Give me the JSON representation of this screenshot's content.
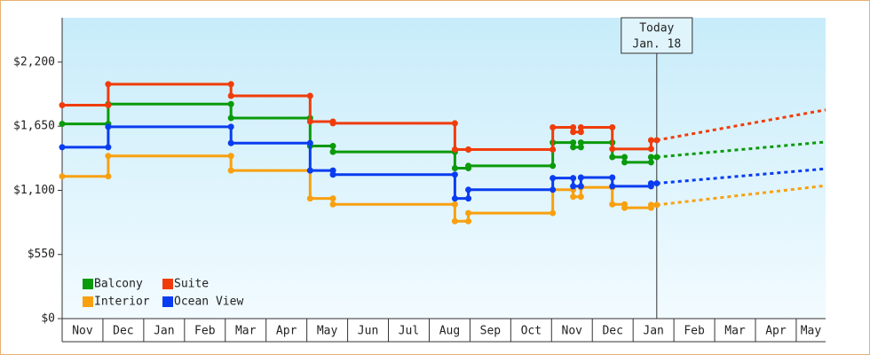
{
  "chart_data": {
    "type": "step-line",
    "xlim": [
      0,
      18.72
    ],
    "xticks": [
      {
        "value": 0.5,
        "label": "Nov"
      },
      {
        "value": 1.5,
        "label": "Dec"
      },
      {
        "value": 2.5,
        "label": "Jan"
      },
      {
        "value": 3.5,
        "label": "Feb"
      },
      {
        "value": 4.5,
        "label": "Mar"
      },
      {
        "value": 5.5,
        "label": "Apr"
      },
      {
        "value": 6.5,
        "label": "May"
      },
      {
        "value": 7.5,
        "label": "Jun"
      },
      {
        "value": 8.5,
        "label": "Jul"
      },
      {
        "value": 9.5,
        "label": "Aug"
      },
      {
        "value": 10.5,
        "label": "Sep"
      },
      {
        "value": 11.5,
        "label": "Oct"
      },
      {
        "value": 12.5,
        "label": "Nov"
      },
      {
        "value": 13.5,
        "label": "Dec"
      },
      {
        "value": 14.5,
        "label": "Jan"
      },
      {
        "value": 15.5,
        "label": "Feb"
      },
      {
        "value": 16.5,
        "label": "Mar"
      },
      {
        "value": 17.5,
        "label": "Apr"
      },
      {
        "value": 18.36,
        "label": "May"
      }
    ],
    "ylim": [
      0,
      2580
    ],
    "yticks": [
      {
        "value": 0,
        "label": "$0"
      },
      {
        "value": 550,
        "label": "$550"
      },
      {
        "value": 1100,
        "label": "$1,100"
      },
      {
        "value": 1650,
        "label": "$1,650"
      },
      {
        "value": 2200,
        "label": "$2,200"
      }
    ],
    "annotation": {
      "x": 14.58,
      "lines": [
        "Today",
        "Jan. 18"
      ]
    },
    "series": [
      {
        "name": "Balcony",
        "color": "#0a9a0a",
        "x": [
          0,
          1.13,
          1.13,
          4.14,
          4.14,
          6.08,
          6.08,
          6.64,
          6.64,
          9.63,
          9.63,
          9.96,
          9.96,
          12.03,
          12.03,
          12.53,
          12.53,
          12.72,
          12.72,
          13.49,
          13.49,
          13.79,
          13.79,
          14.44,
          14.44,
          14.58
        ],
        "values": [
          1670,
          1670,
          1840,
          1840,
          1720,
          1720,
          1480,
          1480,
          1430,
          1430,
          1290,
          1290,
          1310,
          1310,
          1510,
          1510,
          1470,
          1470,
          1510,
          1510,
          1385,
          1385,
          1340,
          1340,
          1385,
          1385
        ],
        "forecast_x": [
          14.58,
          18.72
        ],
        "forecast_values": [
          1385,
          1515
        ]
      },
      {
        "name": "Suite",
        "color": "#f03c0a",
        "x": [
          0,
          1.13,
          1.13,
          4.14,
          4.14,
          6.08,
          6.08,
          6.64,
          6.64,
          9.63,
          9.63,
          9.96,
          9.96,
          12.03,
          12.03,
          12.53,
          12.53,
          12.72,
          12.72,
          13.49,
          13.49,
          14.44,
          14.44,
          14.58
        ],
        "values": [
          1830,
          1830,
          2010,
          2010,
          1910,
          1910,
          1690,
          1690,
          1675,
          1675,
          1450,
          1450,
          1450,
          1450,
          1640,
          1640,
          1600,
          1600,
          1640,
          1640,
          1455,
          1455,
          1530,
          1530
        ],
        "forecast_x": [
          14.58,
          18.72
        ],
        "forecast_values": [
          1530,
          1790
        ]
      },
      {
        "name": "Interior",
        "color": "#f8a010",
        "x": [
          0,
          1.13,
          1.13,
          4.14,
          4.14,
          6.08,
          6.08,
          6.64,
          6.64,
          9.63,
          9.63,
          9.96,
          9.96,
          12.03,
          12.03,
          12.53,
          12.53,
          12.72,
          12.72,
          13.49,
          13.49,
          13.79,
          13.79,
          14.44,
          14.44,
          14.58
        ],
        "values": [
          1220,
          1220,
          1395,
          1395,
          1270,
          1270,
          1030,
          1030,
          980,
          980,
          835,
          835,
          905,
          905,
          1105,
          1105,
          1045,
          1045,
          1125,
          1125,
          980,
          980,
          950,
          950,
          975,
          975
        ],
        "forecast_x": [
          14.58,
          18.72
        ],
        "forecast_values": [
          975,
          1140
        ]
      },
      {
        "name": "Ocean View",
        "color": "#0a3cf0",
        "x": [
          0,
          1.13,
          1.13,
          4.14,
          4.14,
          6.08,
          6.08,
          6.64,
          6.64,
          9.63,
          9.63,
          9.96,
          9.96,
          12.03,
          12.03,
          12.53,
          12.53,
          12.72,
          12.72,
          13.49,
          13.49,
          14.44,
          14.44,
          14.58
        ],
        "values": [
          1470,
          1470,
          1645,
          1645,
          1505,
          1505,
          1270,
          1270,
          1235,
          1235,
          1030,
          1030,
          1105,
          1105,
          1205,
          1205,
          1135,
          1135,
          1210,
          1210,
          1135,
          1135,
          1160,
          1160
        ],
        "forecast_x": [
          14.58,
          18.72
        ],
        "forecast_values": [
          1160,
          1285
        ]
      }
    ]
  }
}
